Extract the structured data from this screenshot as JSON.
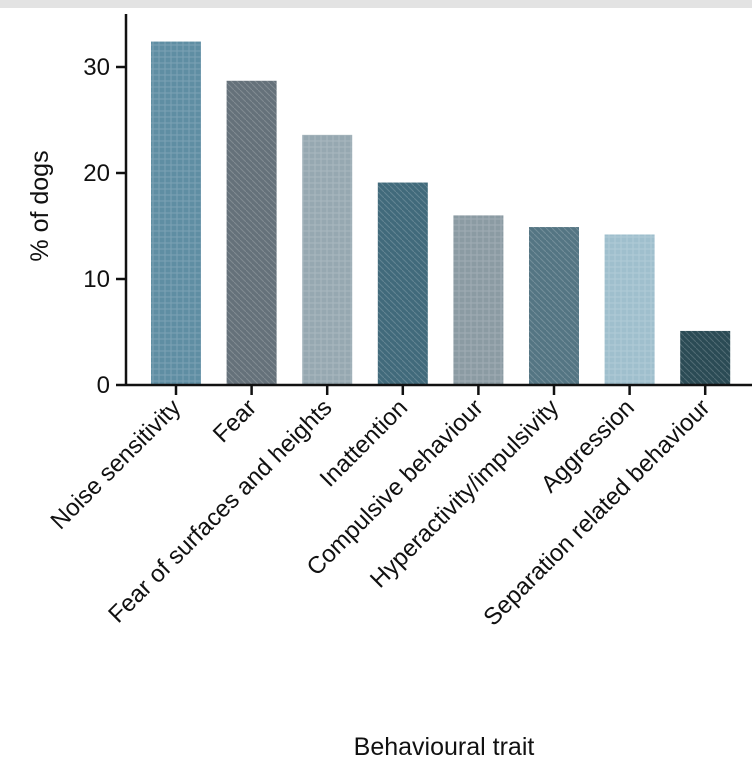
{
  "chart_data": {
    "type": "bar",
    "categories": [
      "Noise sensitivity",
      "Fear",
      "Fear of surfaces and heights",
      "Inattention",
      "Compulsive behaviour",
      "Hyperactivity/impulsivity",
      "Aggression",
      "Separation related behaviour"
    ],
    "values": [
      32.4,
      28.7,
      23.6,
      19.1,
      16.0,
      14.9,
      14.2,
      5.1
    ],
    "xlabel": "Behavioural trait",
    "ylabel": "% of dogs",
    "ylim": [
      0,
      35
    ],
    "yticks": [
      0,
      10,
      20,
      30
    ],
    "grid": false,
    "bar_colors": [
      "#5f8ea3",
      "#65717a",
      "#96a8b1",
      "#416a7b",
      "#8b9ba3",
      "#547583",
      "#9fbfcd",
      "#2b4b55"
    ]
  }
}
